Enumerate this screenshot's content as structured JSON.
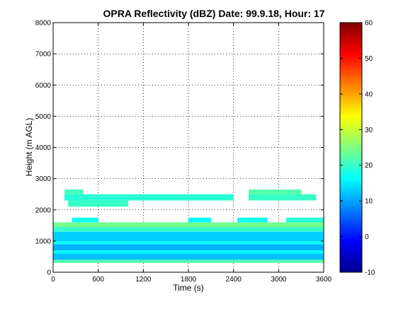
{
  "chart_data": {
    "type": "heatmap",
    "title": "OPRA Reflectivity (dBZ)  Date: 99.9.18, Hour: 17",
    "xlabel": "Time (s)",
    "ylabel": "Height (m AGL)",
    "xlim": [
      0,
      3600
    ],
    "ylim": [
      0,
      8000
    ],
    "xticks": [
      "0",
      "600",
      "1200",
      "1800",
      "2400",
      "3000",
      "3600"
    ],
    "yticks": [
      "0",
      "1000",
      "2000",
      "3000",
      "4000",
      "5000",
      "6000",
      "7000",
      "8000"
    ],
    "grid": true,
    "colorbar": {
      "range": [
        -10,
        60
      ],
      "ticks": [
        "-10",
        "0",
        "10",
        "20",
        "30",
        "40",
        "50",
        "60"
      ],
      "colormap": "jet"
    },
    "layers": [
      {
        "from_m": 300,
        "to_m": 400,
        "t_start": 0,
        "t_end": 3600,
        "dbz": 22
      },
      {
        "from_m": 400,
        "to_m": 600,
        "t_start": 0,
        "t_end": 3600,
        "dbz": 12
      },
      {
        "from_m": 600,
        "to_m": 700,
        "t_start": 0,
        "t_end": 3600,
        "dbz": 16
      },
      {
        "from_m": 700,
        "to_m": 900,
        "t_start": 0,
        "t_end": 3600,
        "dbz": 11
      },
      {
        "from_m": 900,
        "to_m": 1000,
        "t_start": 0,
        "t_end": 3600,
        "dbz": 17
      },
      {
        "from_m": 1000,
        "to_m": 1300,
        "t_start": 0,
        "t_end": 3600,
        "dbz": 13
      },
      {
        "from_m": 1300,
        "to_m": 1450,
        "t_start": 0,
        "t_end": 3600,
        "dbz": 20
      },
      {
        "from_m": 1450,
        "to_m": 1600,
        "t_start": 0,
        "t_end": 3600,
        "dbz": 24
      },
      {
        "from_m": 1600,
        "to_m": 1750,
        "t_start": 250,
        "t_end": 600,
        "dbz": 17
      },
      {
        "from_m": 1600,
        "to_m": 1750,
        "t_start": 1800,
        "t_end": 2100,
        "dbz": 16
      },
      {
        "from_m": 1600,
        "to_m": 1750,
        "t_start": 2450,
        "t_end": 2850,
        "dbz": 17
      },
      {
        "from_m": 1600,
        "to_m": 1750,
        "t_start": 3100,
        "t_end": 3600,
        "dbz": 19
      },
      {
        "from_m": 2100,
        "to_m": 2300,
        "t_start": 200,
        "t_end": 1000,
        "dbz": 20
      },
      {
        "from_m": 2300,
        "to_m": 2500,
        "t_start": 150,
        "t_end": 2400,
        "dbz": 19
      },
      {
        "from_m": 2300,
        "to_m": 2500,
        "t_start": 2600,
        "t_end": 3500,
        "dbz": 20
      },
      {
        "from_m": 2500,
        "to_m": 2650,
        "t_start": 150,
        "t_end": 400,
        "dbz": 21
      },
      {
        "from_m": 2500,
        "to_m": 2650,
        "t_start": 2600,
        "t_end": 3300,
        "dbz": 22
      }
    ]
  }
}
